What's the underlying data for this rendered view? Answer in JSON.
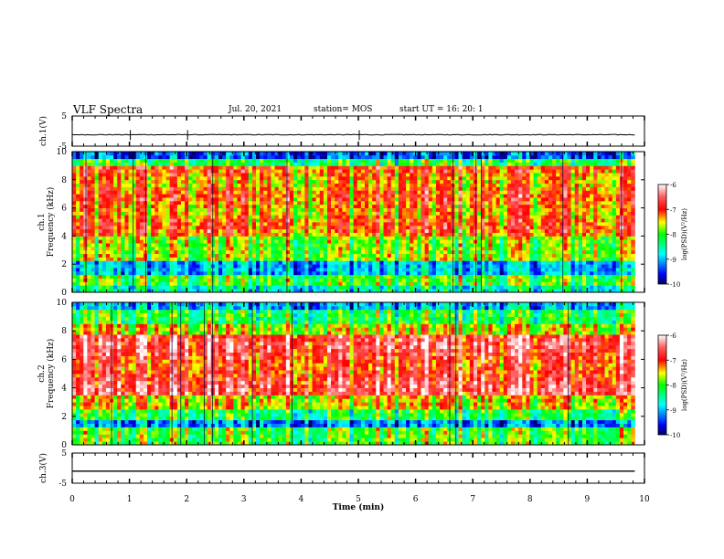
{
  "header": {
    "title": "VLF Spectra",
    "date": "Jul. 20, 2021",
    "station": "station= MOS",
    "start": "start UT = 16: 20: 1"
  },
  "chart_data": [
    {
      "type": "line",
      "name": "ch.1 waveform",
      "ylabel": "ch.1(V)",
      "ylim": [
        -5,
        5
      ],
      "yticks": [
        "5",
        "-5"
      ],
      "x": [
        0,
        10
      ],
      "values": [
        -1.2,
        -1.2
      ]
    },
    {
      "type": "heatmap",
      "ylabel": "ch.1\nFrequency (kHz)",
      "ylabel_line1": "ch.1",
      "ylabel_line2": "Frequency (kHz)",
      "ylim": [
        0,
        10
      ],
      "yticks": [
        "0",
        "2",
        "4",
        "6",
        "8",
        "10"
      ],
      "colorbar": {
        "label": "log(PSD)(V²/Hz)",
        "ticks": [
          "-6",
          "-7",
          "-8",
          "-9",
          "-10"
        ],
        "range": [
          -10,
          -6
        ]
      },
      "dominant_band_khz": [
        4,
        9
      ]
    },
    {
      "type": "heatmap",
      "ylabel": "ch.2\nFrequency (kHz)",
      "ylabel_line1": "ch.2",
      "ylabel_line2": "Frequency (kHz)",
      "ylim": [
        0,
        10
      ],
      "yticks": [
        "0",
        "2",
        "4",
        "6",
        "8",
        "10"
      ],
      "colorbar": {
        "label": "log(PSD)(V²/Hz)",
        "ticks": [
          "-6",
          "-7",
          "-8",
          "-9",
          "-10"
        ],
        "range": [
          -10,
          -6
        ]
      },
      "dominant_band_khz": [
        3.5,
        8
      ]
    },
    {
      "type": "line",
      "name": "ch.3 waveform",
      "ylabel": "ch.3(V)",
      "ylim": [
        -5,
        5
      ],
      "yticks": [
        "5",
        "-5"
      ],
      "x": [
        0,
        10
      ],
      "values": [
        -1.0,
        -1.0
      ]
    }
  ],
  "xaxis": {
    "label": "Time (min)",
    "range": [
      0,
      10
    ],
    "ticks": [
      "0",
      "1",
      "2",
      "3",
      "4",
      "5",
      "6",
      "7",
      "8",
      "9",
      "10"
    ],
    "data_end_min": 9.83
  },
  "colors": {
    "axis": "#000000",
    "trace": "#000000",
    "background": "#ffffff"
  }
}
